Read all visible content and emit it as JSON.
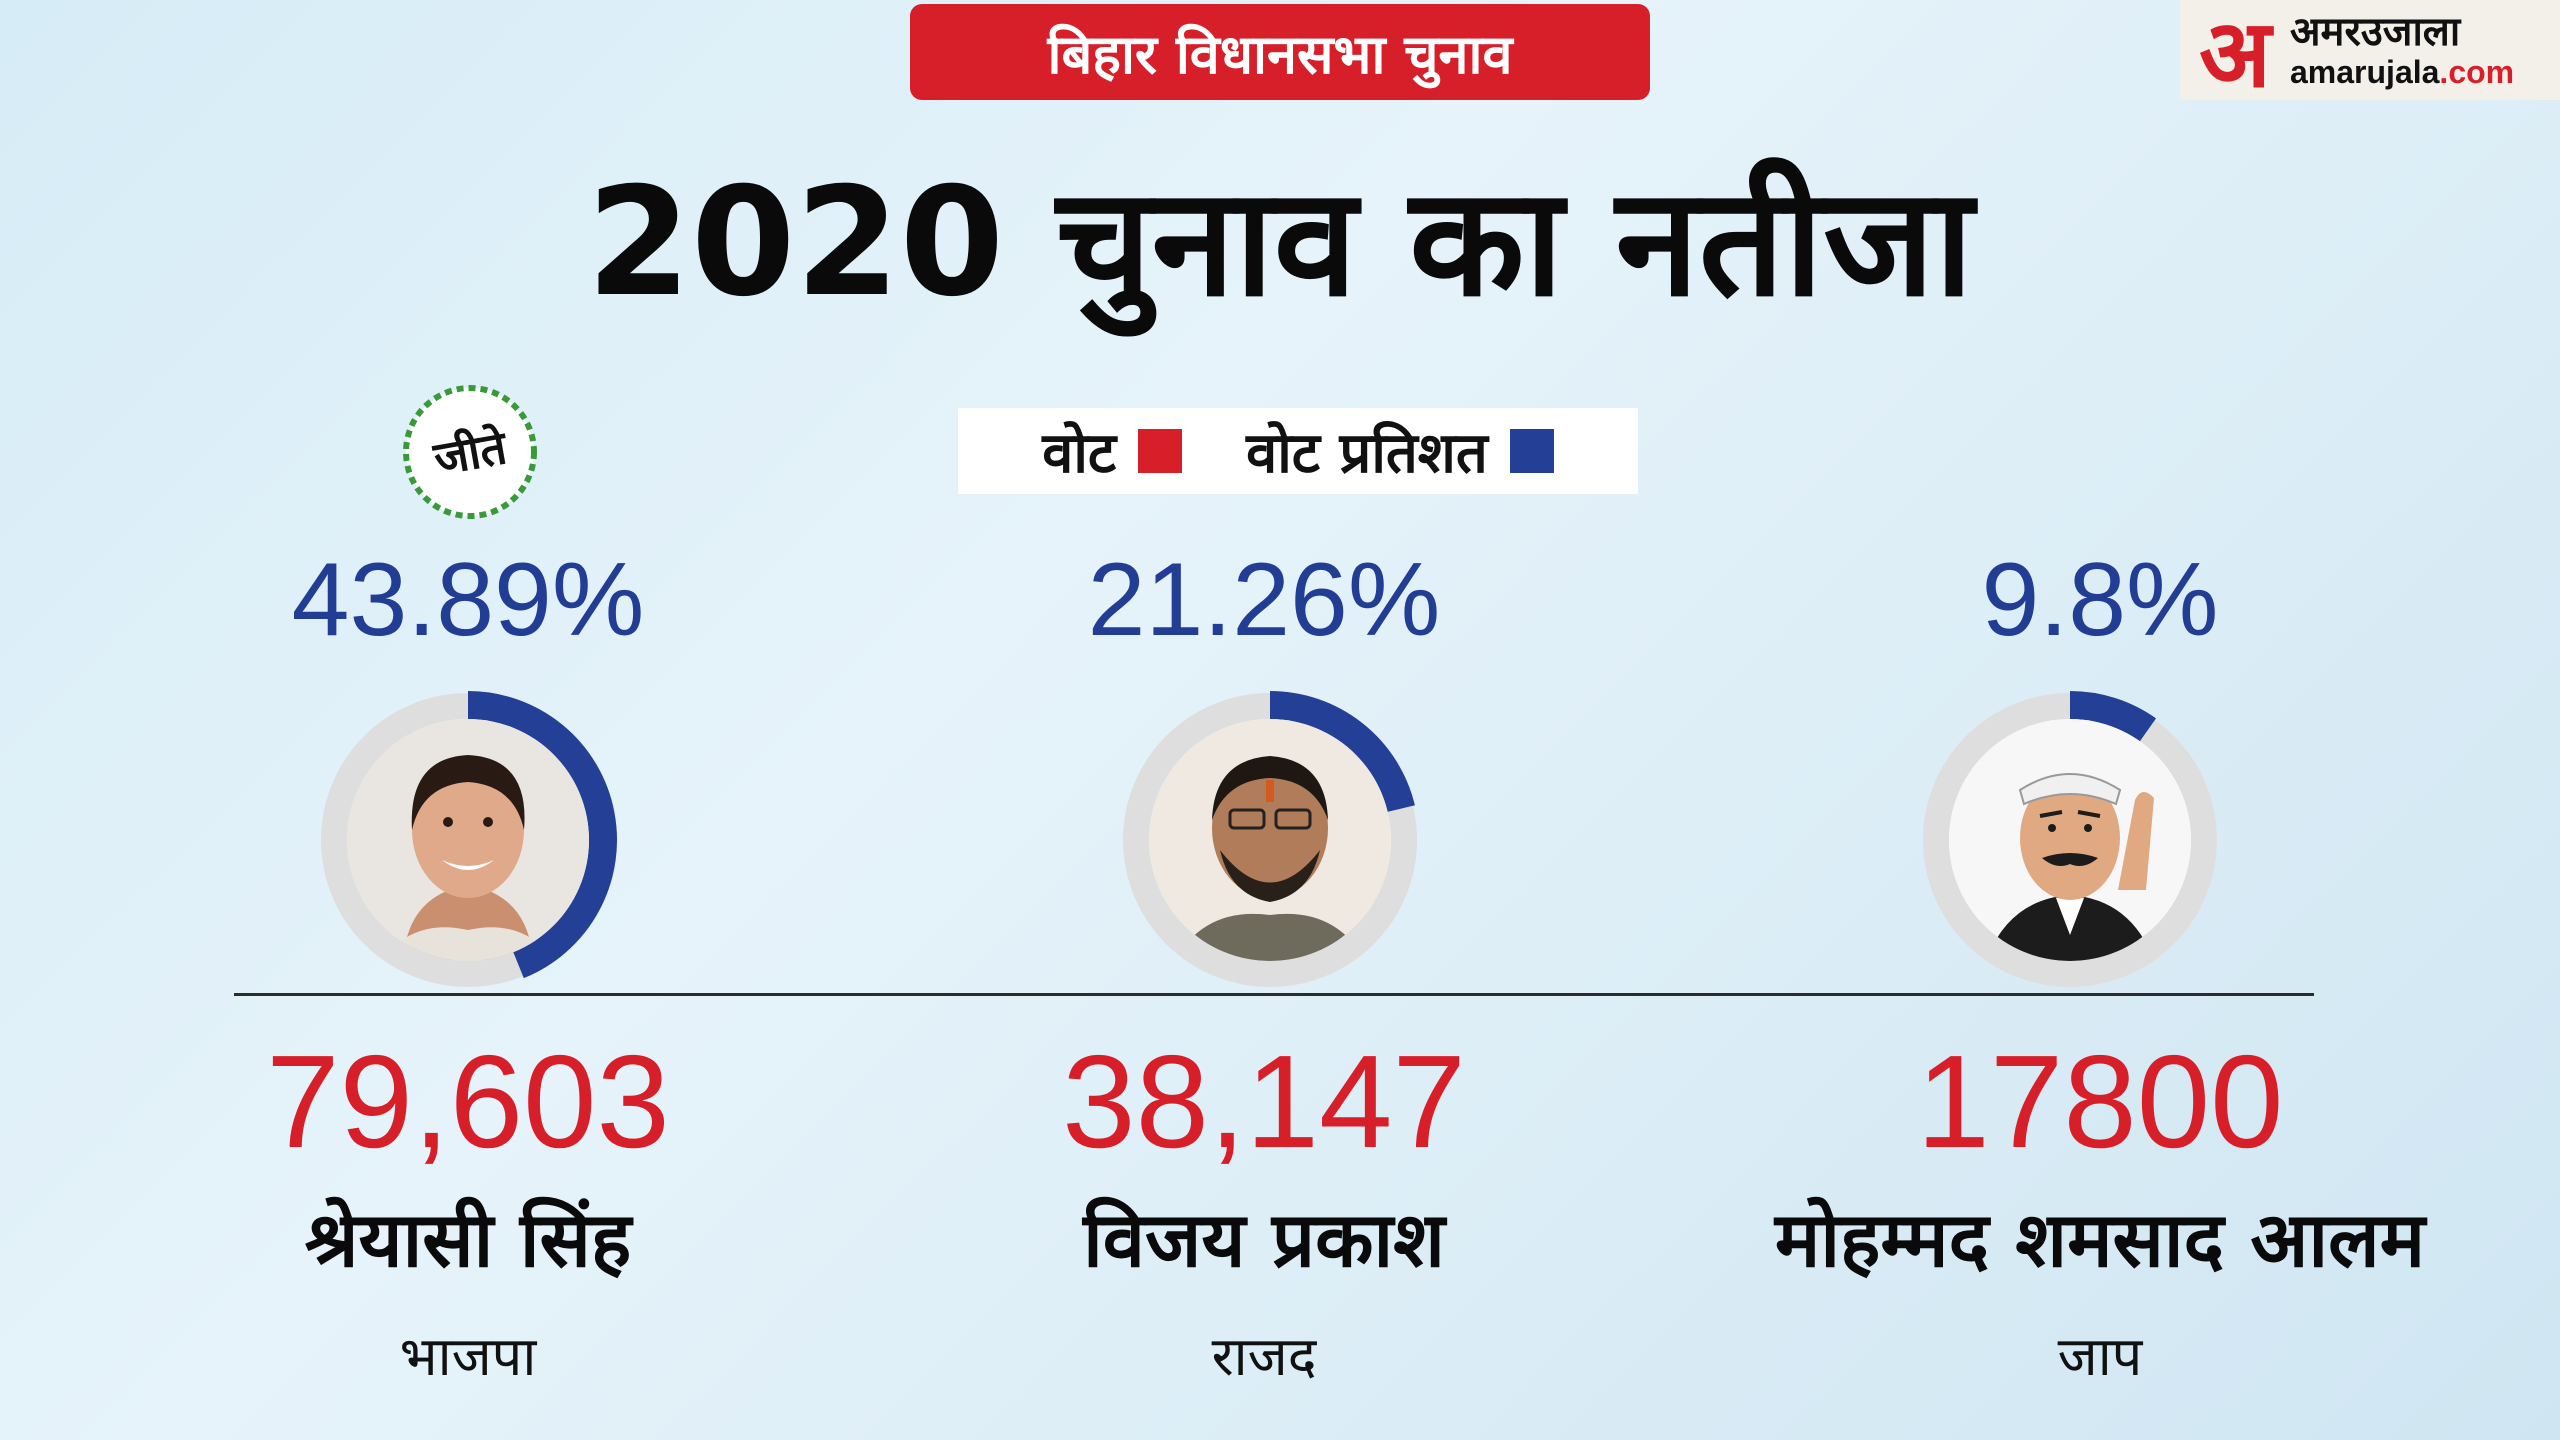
{
  "header": {
    "tag": "बिहार विधानसभा चुनाव",
    "title": "2020 चुनाव का नतीजा"
  },
  "logo": {
    "mark": "अ",
    "name_hi": "अमरउजाला",
    "site_name": "amarujala",
    "site_tld": ".com"
  },
  "legend": {
    "votes_label": "वोट",
    "votes_color": "#d71f2a",
    "percent_label": "वोट प्रतिशत",
    "percent_color": "#233f96"
  },
  "winner_badge": "जीते",
  "colors": {
    "ring_track": "#dedede",
    "ring_fill": "#233f96",
    "badge": "#3a9a3a"
  },
  "chart_data": {
    "type": "donut",
    "categories": [
      "श्रेयासी सिंह",
      "विजय प्रकाश",
      "मोहम्मद शमसाद आलम"
    ],
    "series": [
      {
        "values": [
          43.89,
          21.26,
          9.8
        ]
      }
    ],
    "candidates": [
      {
        "name": "श्रेयासी सिंह",
        "party": "भाजपा",
        "votes": "79,603",
        "percent": 43.89,
        "percent_label": "43.89%",
        "winner": true,
        "portrait": "woman-photo"
      },
      {
        "name": "विजय प्रकाश",
        "party": "राजद",
        "votes": "38,147",
        "percent": 21.26,
        "percent_label": "21.26%",
        "winner": false,
        "portrait": "man-photo"
      },
      {
        "name": "मोहम्मद शमसाद आलम",
        "party": "जाप",
        "votes": "17800",
        "percent": 9.8,
        "percent_label": "9.8%",
        "winner": false,
        "portrait": "cartoon-man"
      }
    ]
  }
}
